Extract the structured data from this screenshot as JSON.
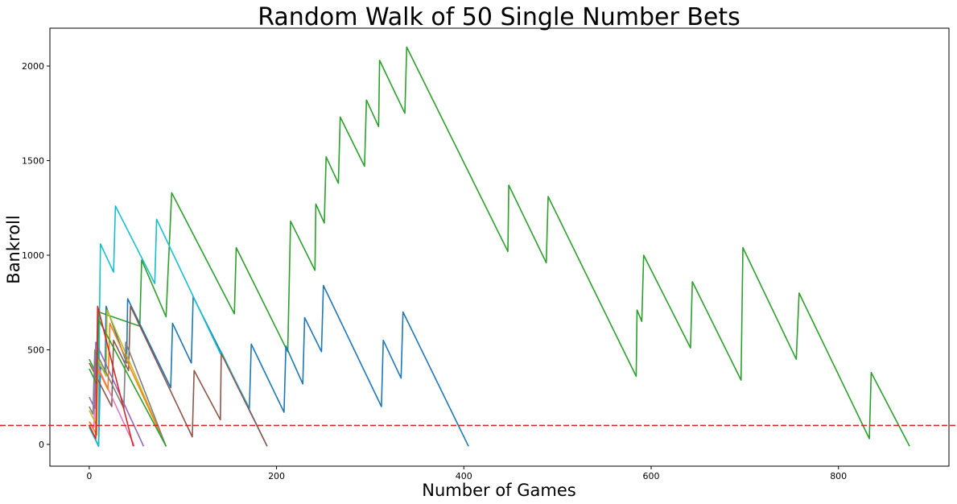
{
  "chart_data": {
    "type": "line",
    "title": "Random Walk of 50 Single Number Bets",
    "xlabel": "Number of Games",
    "ylabel": "Bankroll",
    "xlim": [
      -42,
      918
    ],
    "ylim": [
      -115,
      2200
    ],
    "xticks": [
      0,
      200,
      400,
      600,
      800
    ],
    "yticks": [
      0,
      500,
      1000,
      1500,
      2000
    ],
    "grid": false,
    "reference_line": {
      "y": 100,
      "color": "#d62728",
      "style": "dashed"
    },
    "series": [
      {
        "color": "#2ca02c",
        "points": [
          [
            0,
            450
          ],
          [
            9,
            360
          ],
          [
            10,
            700
          ],
          [
            54,
            625
          ],
          [
            56,
            975
          ],
          [
            82,
            675
          ],
          [
            88,
            1330
          ],
          [
            155,
            690
          ],
          [
            157,
            1040
          ],
          [
            212,
            490
          ],
          [
            215,
            1180
          ],
          [
            241,
            920
          ],
          [
            242,
            1270
          ],
          [
            251,
            1170
          ],
          [
            253,
            1520
          ],
          [
            266,
            1380
          ],
          [
            268,
            1730
          ],
          [
            294,
            1470
          ],
          [
            296,
            1820
          ],
          [
            309,
            1680
          ],
          [
            310,
            2030
          ],
          [
            337,
            1750
          ],
          [
            339,
            2100
          ],
          [
            447,
            1020
          ],
          [
            448,
            1370
          ],
          [
            488,
            960
          ],
          [
            490,
            1310
          ],
          [
            584,
            360
          ],
          [
            585,
            710
          ],
          [
            590,
            650
          ],
          [
            592,
            1000
          ],
          [
            642,
            510
          ],
          [
            644,
            860
          ],
          [
            696,
            340
          ],
          [
            698,
            1040
          ],
          [
            755,
            450
          ],
          [
            758,
            800
          ],
          [
            833,
            30
          ],
          [
            835,
            380
          ],
          [
            876,
            -10
          ]
        ]
      },
      {
        "color": "#1f77b4",
        "points": [
          [
            0,
            100
          ],
          [
            10,
            -10
          ],
          [
            12,
            410
          ],
          [
            17,
            380
          ],
          [
            18,
            730
          ],
          [
            40,
            430
          ],
          [
            41,
            770
          ],
          [
            87,
            300
          ],
          [
            89,
            640
          ],
          [
            109,
            430
          ],
          [
            111,
            780
          ],
          [
            171,
            190
          ],
          [
            173,
            530
          ],
          [
            208,
            170
          ],
          [
            210,
            520
          ],
          [
            228,
            320
          ],
          [
            230,
            670
          ],
          [
            248,
            490
          ],
          [
            250,
            840
          ],
          [
            312,
            200
          ],
          [
            314,
            550
          ],
          [
            333,
            350
          ],
          [
            335,
            700
          ],
          [
            405,
            -10
          ]
        ]
      },
      {
        "color": "#17becf",
        "points": [
          [
            0,
            90
          ],
          [
            10,
            -10
          ],
          [
            11,
            710
          ],
          [
            12,
            1060
          ],
          [
            26,
            910
          ],
          [
            28,
            1260
          ],
          [
            70,
            850
          ],
          [
            72,
            1190
          ],
          [
            140,
            480
          ],
          [
            141,
            490
          ],
          [
            190,
            -10
          ]
        ]
      },
      {
        "color": "#8c564b",
        "points": [
          [
            0,
            430
          ],
          [
            24,
            200
          ],
          [
            26,
            550
          ],
          [
            42,
            390
          ],
          [
            44,
            730
          ],
          [
            110,
            40
          ],
          [
            112,
            390
          ],
          [
            140,
            130
          ],
          [
            141,
            480
          ],
          [
            190,
            -10
          ]
        ]
      },
      {
        "color": "#e377c2",
        "points": [
          [
            0,
            120
          ],
          [
            5,
            90
          ],
          [
            7,
            435
          ],
          [
            47,
            5
          ],
          [
            48,
            -10
          ]
        ]
      },
      {
        "color": "#bcbd22",
        "points": [
          [
            0,
            180
          ],
          [
            8,
            100
          ],
          [
            9,
            450
          ],
          [
            18,
            360
          ],
          [
            19,
            710
          ],
          [
            82,
            -10
          ]
        ]
      },
      {
        "color": "#ff7f0e",
        "points": [
          [
            0,
            120
          ],
          [
            8,
            50
          ],
          [
            9,
            400
          ],
          [
            20,
            290
          ],
          [
            22,
            640
          ],
          [
            82,
            -10
          ]
        ]
      },
      {
        "color": "#9467bd",
        "points": [
          [
            0,
            250
          ],
          [
            6,
            190
          ],
          [
            7,
            540
          ],
          [
            58,
            -10
          ]
        ]
      },
      {
        "color": "#7f7f7f",
        "points": [
          [
            0,
            200
          ],
          [
            4,
            160
          ],
          [
            6,
            500
          ],
          [
            37,
            190
          ],
          [
            39,
            540
          ],
          [
            82,
            -10
          ]
        ]
      },
      {
        "color": "#2ca02c",
        "points": [
          [
            0,
            400
          ],
          [
            8,
            320
          ],
          [
            10,
            660
          ],
          [
            82,
            -10
          ]
        ]
      },
      {
        "color": "#d62728",
        "points": [
          [
            0,
            100
          ],
          [
            7,
            30
          ],
          [
            9,
            730
          ],
          [
            47,
            -10
          ]
        ]
      }
    ]
  }
}
